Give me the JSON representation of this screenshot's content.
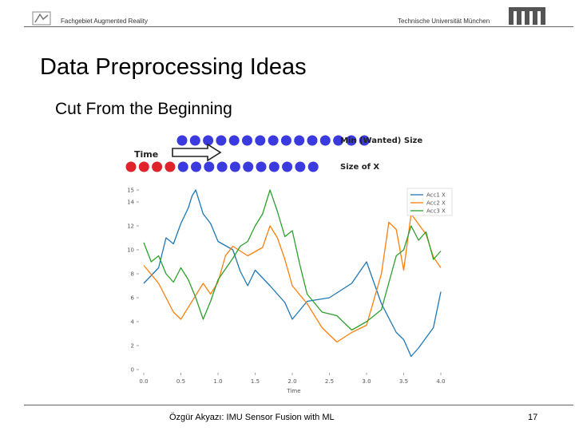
{
  "header": {
    "department": "Fachgebiet Augmented Reality",
    "university": "Technische Universität München"
  },
  "slide": {
    "title": "Data Preprocessing Ideas",
    "subtitle": "Cut From the Beginning"
  },
  "diagram": {
    "time_label": "Time",
    "min_label": "Min (Wanted) Size",
    "size_label": "Size of X",
    "blue_dots_top": 15,
    "red_dots_bottom": 4,
    "blue_dots_bottom": 11,
    "colors": {
      "blue": "#3a3adf",
      "red": "#e0222a"
    }
  },
  "chart_data": {
    "type": "line",
    "xlabel": "Time",
    "ylabel": "",
    "xlim": [
      0,
      4
    ],
    "ylim": [
      0,
      15
    ],
    "xticks": [
      "0.0",
      "0.5",
      "1.0",
      "1.5",
      "2.0",
      "2.5",
      "3.0",
      "3.5",
      "4.0"
    ],
    "yticks": [
      "0",
      "2",
      "4",
      "6",
      "8",
      "10",
      "12",
      "14"
    ],
    "y_top_label": "15",
    "legend_position": "top-right",
    "series": [
      {
        "name": "Acc1 X",
        "color": "#1f77b4",
        "x": [
          0,
          0.2,
          0.3,
          0.4,
          0.5,
          0.6,
          0.65,
          0.7,
          0.8,
          0.9,
          1.0,
          1.2,
          1.3,
          1.4,
          1.5,
          1.7,
          1.9,
          2.0,
          2.2,
          2.5,
          2.8,
          3.0,
          3.2,
          3.4,
          3.5,
          3.6,
          3.7,
          3.9,
          4.0
        ],
        "y": [
          7.2,
          8.5,
          11,
          10.5,
          12.2,
          13.5,
          14.5,
          15,
          13,
          12.2,
          10.7,
          10,
          8.2,
          7,
          8.3,
          7,
          5.6,
          4.2,
          5.7,
          6,
          7.2,
          9,
          5.5,
          3.1,
          2.5,
          1.1,
          1.8,
          3.5,
          6.5
        ]
      },
      {
        "name": "Acc2 X",
        "color": "#ff7f0e",
        "x": [
          0,
          0.2,
          0.4,
          0.5,
          0.6,
          0.8,
          0.9,
          1.0,
          1.1,
          1.2,
          1.4,
          1.6,
          1.7,
          1.8,
          1.9,
          2.0,
          2.2,
          2.4,
          2.6,
          2.8,
          3.0,
          3.2,
          3.3,
          3.4,
          3.5,
          3.6,
          3.8,
          3.9,
          4.0
        ],
        "y": [
          8.7,
          7.2,
          4.8,
          4.2,
          5.2,
          7.2,
          6.3,
          7.3,
          9.5,
          10.3,
          9.5,
          10.2,
          12,
          11,
          9.2,
          7,
          5.5,
          3.5,
          2.3,
          3.1,
          3.7,
          8,
          12.3,
          11.7,
          8.3,
          13,
          11.3,
          9.4,
          8.5
        ]
      },
      {
        "name": "Acc3 X",
        "color": "#2ca02c",
        "x": [
          0,
          0.1,
          0.2,
          0.3,
          0.4,
          0.5,
          0.6,
          0.7,
          0.8,
          0.9,
          1.0,
          1.2,
          1.3,
          1.4,
          1.5,
          1.6,
          1.7,
          1.8,
          1.9,
          2.0,
          2.1,
          2.2,
          2.4,
          2.6,
          2.8,
          3.0,
          3.2,
          3.4,
          3.5,
          3.6,
          3.7,
          3.8,
          3.9,
          4.0
        ],
        "y": [
          10.6,
          9,
          9.5,
          8,
          7.3,
          8.5,
          7.5,
          6,
          4.2,
          5.7,
          7.5,
          9.3,
          10.3,
          10.7,
          12,
          13,
          15,
          13.2,
          11.1,
          11.6,
          8.8,
          6.3,
          4.8,
          4.5,
          3.3,
          4,
          5,
          9.5,
          10,
          12,
          10.8,
          11.5,
          9.2,
          9.9
        ]
      }
    ]
  },
  "footer": {
    "author": "Özgür Akyazı: IMU Sensor Fusion with ML",
    "page": "17"
  }
}
